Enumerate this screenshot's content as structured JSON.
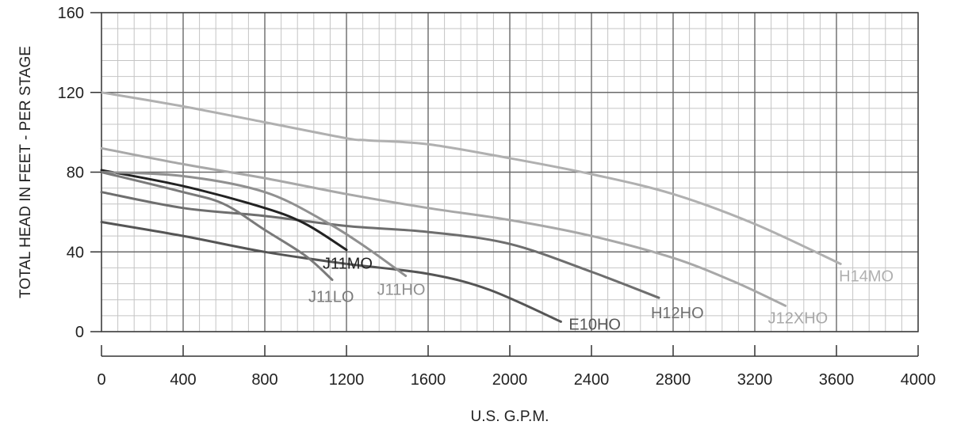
{
  "chart_data": {
    "type": "line",
    "title": "",
    "xlabel": "U.S. G.P.M.",
    "ylabel": "TOTAL HEAD IN FEET - PER STAGE",
    "xlim": [
      0,
      4000
    ],
    "ylim": [
      0,
      160
    ],
    "x_ticks": [
      "0",
      "400",
      "800",
      "1200",
      "1600",
      "2000",
      "2400",
      "2800",
      "3200",
      "3600",
      "4000"
    ],
    "y_ticks": [
      "0",
      "40",
      "80",
      "120",
      "160"
    ],
    "grid": true,
    "legend": "inline labels at curve ends",
    "series": [
      {
        "name": "H14MO",
        "color": "#b0b0b0",
        "points": [
          [
            0,
            120
          ],
          [
            400,
            113
          ],
          [
            800,
            105
          ],
          [
            1200,
            97
          ],
          [
            1300,
            96
          ],
          [
            1600,
            94
          ],
          [
            2000,
            87
          ],
          [
            2400,
            79
          ],
          [
            2800,
            69
          ],
          [
            3200,
            54
          ],
          [
            3620,
            34
          ]
        ]
      },
      {
        "name": "J12XHO",
        "color": "#a8a8a8",
        "points": [
          [
            0,
            92
          ],
          [
            400,
            84
          ],
          [
            800,
            77
          ],
          [
            1200,
            69
          ],
          [
            1600,
            62
          ],
          [
            2000,
            56
          ],
          [
            2400,
            48
          ],
          [
            2800,
            37
          ],
          [
            3100,
            25
          ],
          [
            3350,
            13
          ]
        ]
      },
      {
        "name": "H12HO",
        "color": "#6e6e6e",
        "points": [
          [
            0,
            70
          ],
          [
            400,
            62
          ],
          [
            800,
            58
          ],
          [
            1200,
            53
          ],
          [
            1600,
            50
          ],
          [
            2000,
            44
          ],
          [
            2400,
            30
          ],
          [
            2730,
            17
          ]
        ]
      },
      {
        "name": "E10HO",
        "color": "#555555",
        "points": [
          [
            0,
            55
          ],
          [
            400,
            48
          ],
          [
            800,
            40
          ],
          [
            1200,
            34
          ],
          [
            1600,
            29
          ],
          [
            1900,
            21
          ],
          [
            2250,
            5
          ]
        ]
      },
      {
        "name": "J11MO",
        "color": "#222222",
        "points": [
          [
            0,
            81
          ],
          [
            400,
            73
          ],
          [
            800,
            62
          ],
          [
            1000,
            54
          ],
          [
            1200,
            41
          ]
        ]
      },
      {
        "name": "J11HO",
        "color": "#909090",
        "points": [
          [
            0,
            80
          ],
          [
            400,
            78
          ],
          [
            800,
            70
          ],
          [
            1100,
            55
          ],
          [
            1300,
            42
          ],
          [
            1490,
            28
          ]
        ]
      },
      {
        "name": "J11LO",
        "color": "#7a7a7a",
        "points": [
          [
            0,
            80
          ],
          [
            400,
            70
          ],
          [
            600,
            64
          ],
          [
            800,
            51
          ],
          [
            1000,
            38
          ],
          [
            1130,
            26
          ]
        ]
      }
    ]
  }
}
